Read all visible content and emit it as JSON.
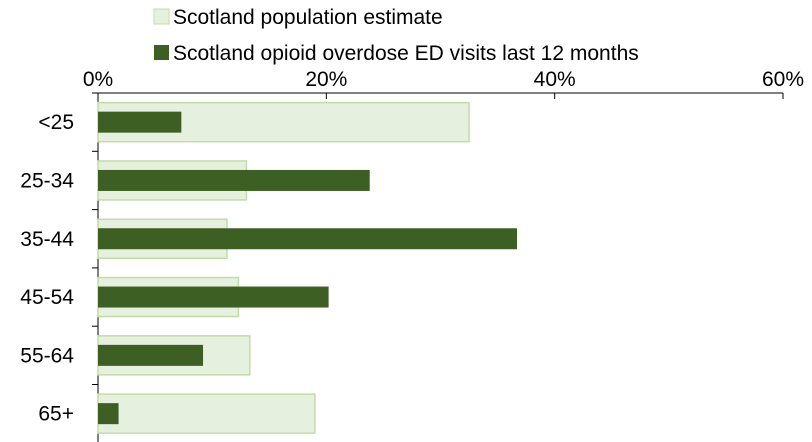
{
  "chart_data": {
    "type": "bar",
    "orientation": "horizontal",
    "categories": [
      "<25",
      "25-34",
      "35-44",
      "45-54",
      "55-64",
      "65+"
    ],
    "series": [
      {
        "name": "Scotland population estimate",
        "values": [
          32.5,
          13.0,
          11.3,
          12.3,
          13.3,
          19.0
        ],
        "color": "#e6f0df",
        "border": "#c3dba9"
      },
      {
        "name": "Scotland opioid overdose ED visits last 12 months",
        "values": [
          7.3,
          23.8,
          36.7,
          20.2,
          9.2,
          1.8
        ],
        "color": "#3d5f24"
      }
    ],
    "xlim": [
      0,
      60
    ],
    "xticks": [
      "0%",
      "20%",
      "40%",
      "60%"
    ],
    "xtick_values": [
      0,
      20,
      40,
      60
    ],
    "axis_position": "top",
    "legend": "top",
    "grid": false
  }
}
